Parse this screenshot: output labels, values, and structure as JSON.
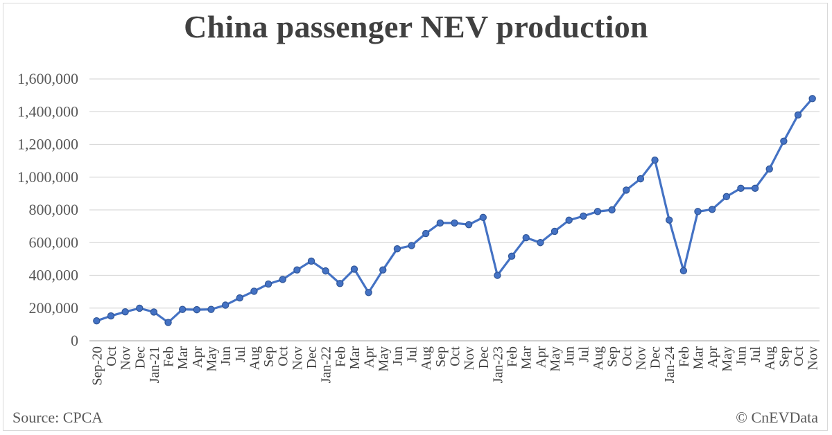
{
  "chart_data": {
    "type": "line",
    "title": "China passenger NEV production",
    "ylim": [
      0,
      1600000
    ],
    "yticks": [
      0,
      200000,
      400000,
      600000,
      800000,
      1000000,
      1200000,
      1400000,
      1600000
    ],
    "ytick_labels": [
      "0",
      "200,000",
      "400,000",
      "600,000",
      "800,000",
      "1,000,000",
      "1,200,000",
      "1,400,000",
      "1,600,000"
    ],
    "grid": true,
    "legend": "none",
    "color": "#4472c4",
    "categories": [
      "Sep-20",
      "Oct",
      "Nov",
      "Dec",
      "Jan-21",
      "Feb",
      "Mar",
      "Apr",
      "May",
      "Jun",
      "Jul",
      "Aug",
      "Sep",
      "Oct",
      "Nov",
      "Dec",
      "Jan-22",
      "Feb",
      "Mar",
      "Apr",
      "May",
      "Jun",
      "Jul",
      "Aug",
      "Sep",
      "Oct",
      "Nov",
      "Dec",
      "Jan-23",
      "Feb",
      "Mar",
      "Apr",
      "May",
      "Jun",
      "Jul",
      "Aug",
      "Sep",
      "Oct",
      "Nov",
      "Dec",
      "Jan-24",
      "Feb",
      "Mar",
      "Apr",
      "May",
      "Jun",
      "Jul",
      "Aug",
      "Sep",
      "Oct",
      "Nov"
    ],
    "values": [
      122000,
      152000,
      177000,
      199000,
      176000,
      112000,
      192000,
      190000,
      192000,
      218000,
      262000,
      303000,
      347000,
      375000,
      433000,
      487000,
      427000,
      350000,
      438000,
      295000,
      433000,
      562000,
      582000,
      656000,
      720000,
      720000,
      710000,
      754000,
      400000,
      517000,
      630000,
      600000,
      669000,
      737000,
      762000,
      790000,
      800000,
      921000,
      990000,
      1104000,
      738000,
      428000,
      790000,
      803000,
      881000,
      932000,
      932000,
      1050000,
      1220000,
      1380000,
      1480000
    ]
  },
  "footer": {
    "source": "Source: CPCA",
    "credit": "© CnEVData"
  }
}
